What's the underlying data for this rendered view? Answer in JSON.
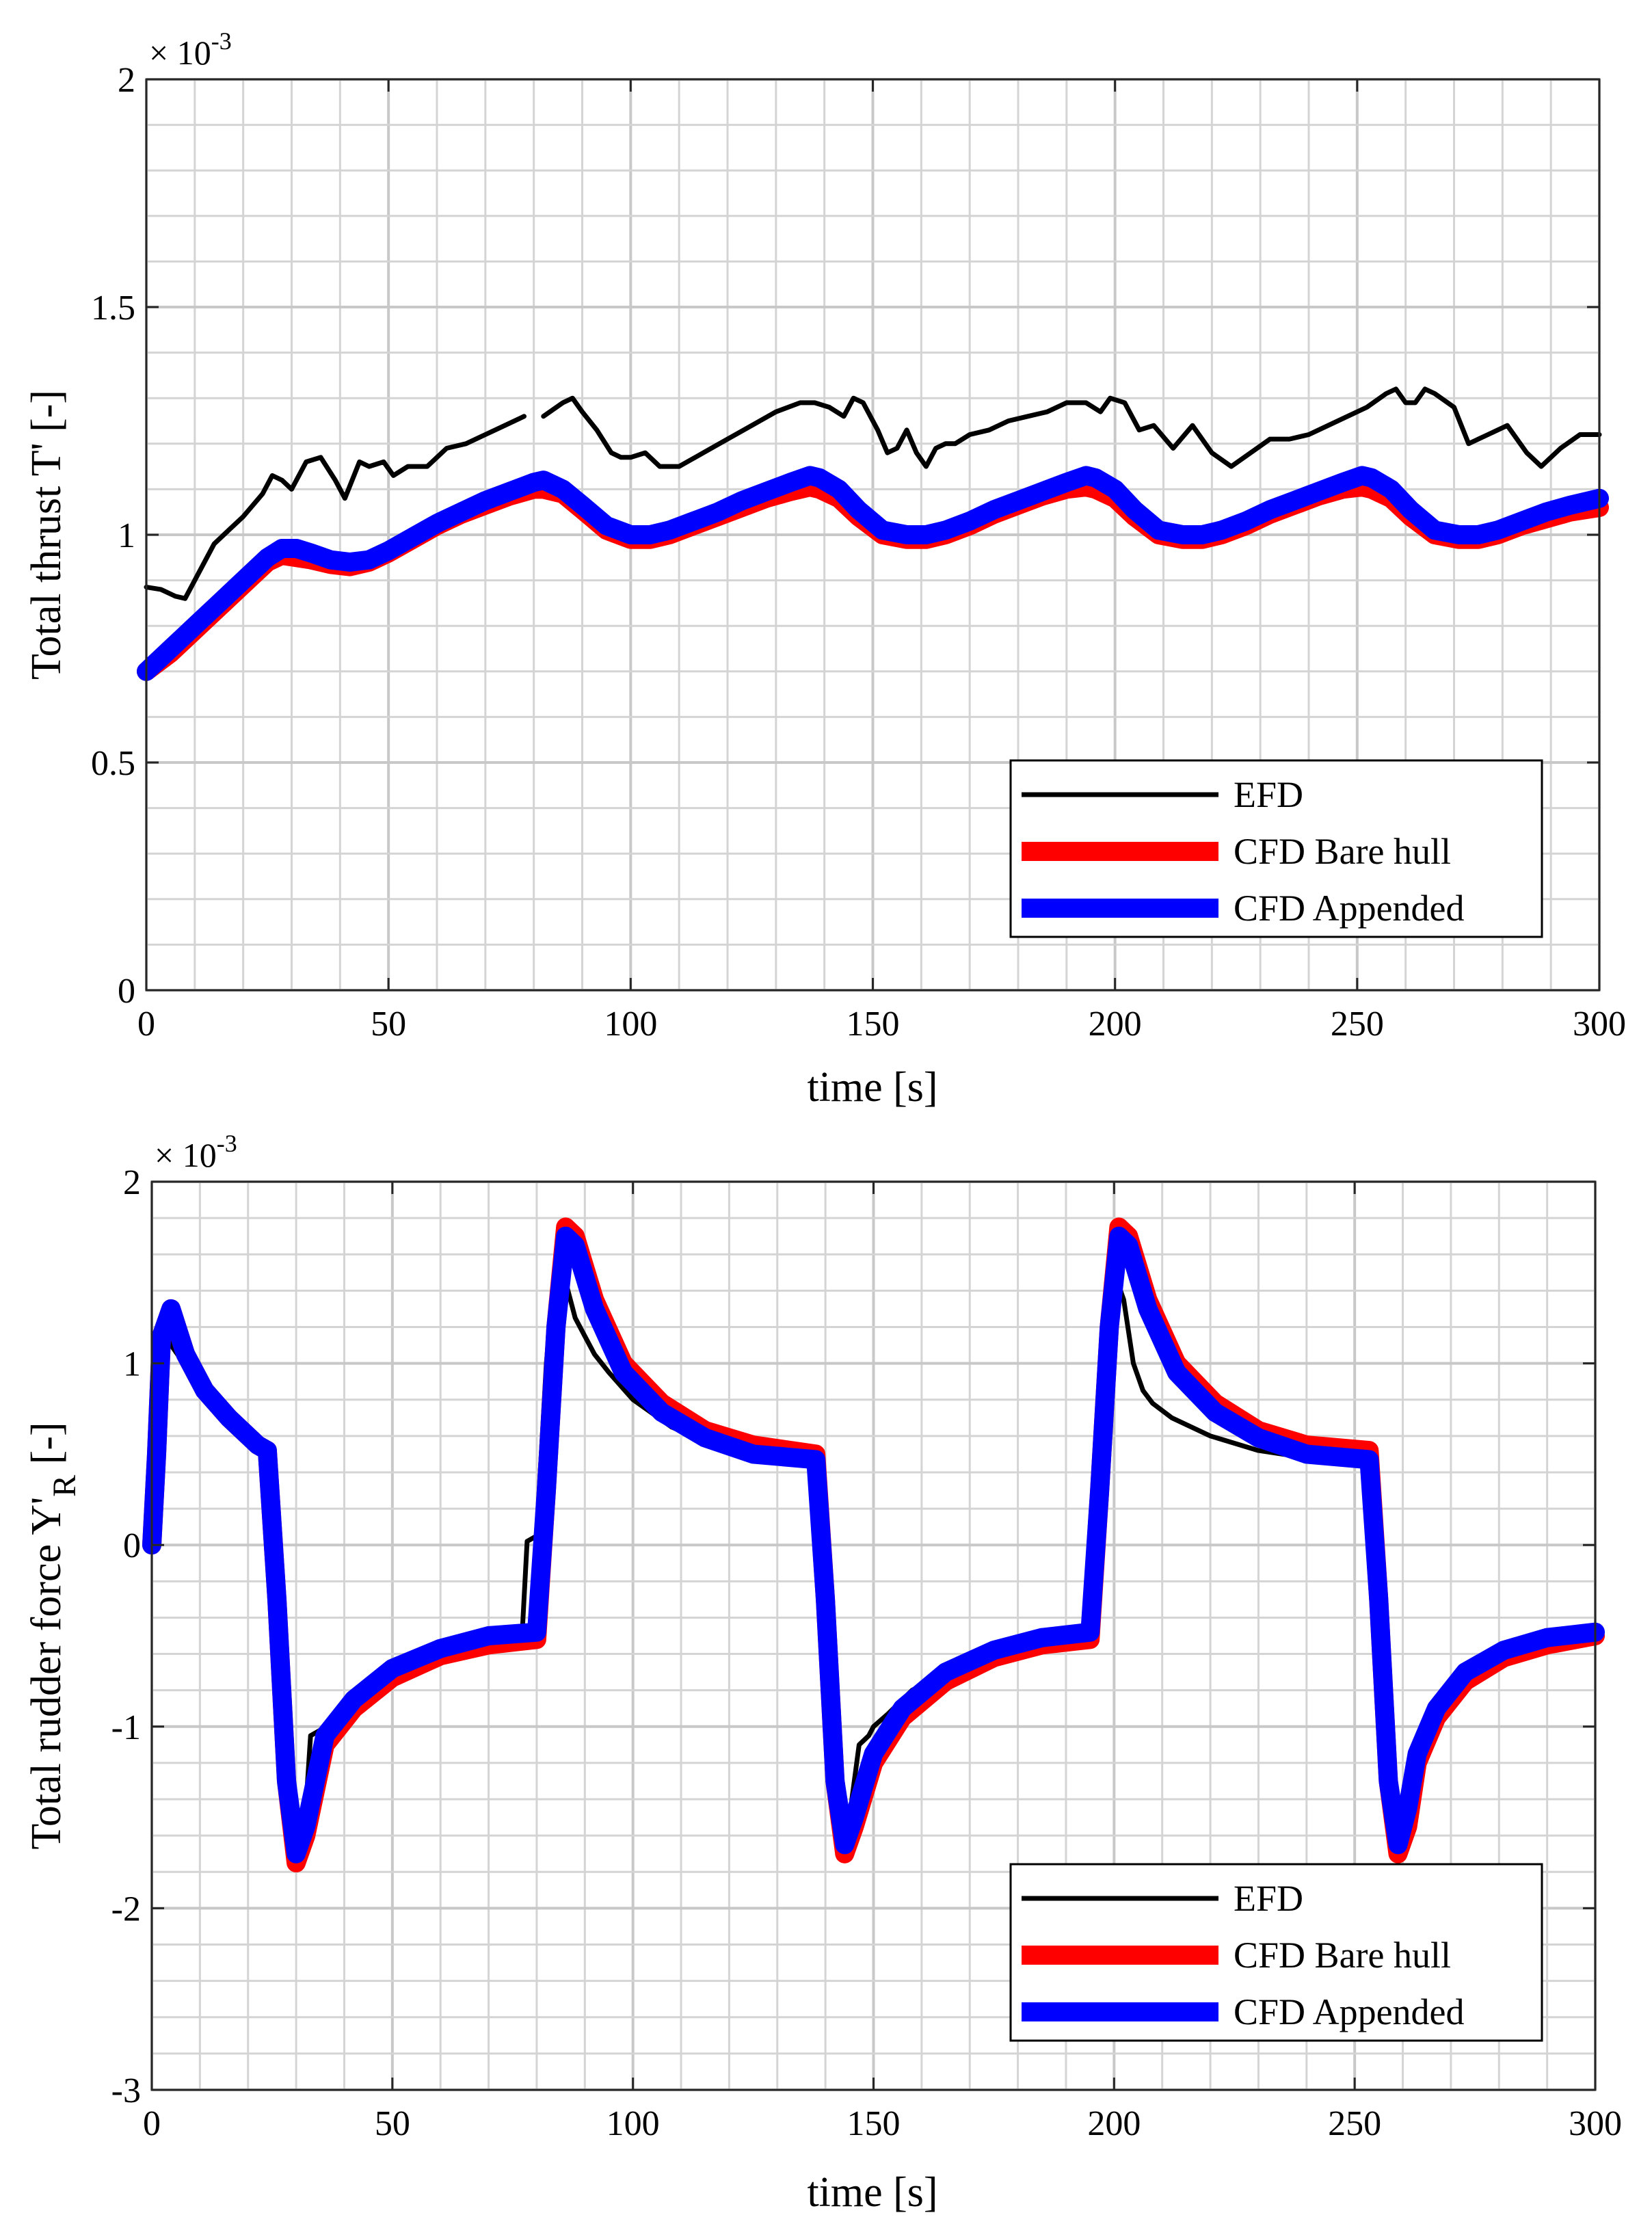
{
  "chart_data": [
    {
      "type": "line",
      "xlabel": "time [s]",
      "ylabel": "Total thrust T' [-]",
      "exponent": {
        "base": "× 10",
        "power": "-3"
      },
      "xlim": [
        0,
        300
      ],
      "ylim": [
        0,
        2
      ],
      "xticks": [
        0,
        50,
        100,
        150,
        200,
        250,
        300
      ],
      "xtick_labels": [
        "0",
        "50",
        "100",
        "150",
        "200",
        "250",
        "300"
      ],
      "yticks": [
        0,
        0.5,
        1,
        1.5,
        2
      ],
      "ytick_labels": [
        "0",
        "0.5",
        "1",
        "1.5",
        "2"
      ],
      "grid": true,
      "legend": {
        "location": "bottom-right"
      },
      "series": [
        {
          "name": "EFD",
          "color": "#000000",
          "x": [
            0,
            3,
            6,
            8,
            11,
            14,
            17,
            20,
            24,
            26,
            28,
            30,
            33,
            36,
            39,
            41,
            44,
            46,
            49,
            51,
            54,
            58,
            62,
            66,
            70,
            74,
            78,
            null,
            82,
            86,
            88,
            90,
            93,
            96,
            98,
            100,
            103,
            106,
            110,
            115,
            120,
            125,
            130,
            135,
            138,
            141,
            144,
            146,
            148,
            151,
            153,
            155,
            157,
            159,
            161,
            163,
            165,
            167,
            170,
            174,
            178,
            182,
            186,
            190,
            194,
            197,
            199,
            202,
            205,
            208,
            212,
            216,
            220,
            224,
            228,
            232,
            236,
            240,
            244,
            248,
            252,
            256,
            258,
            260,
            262,
            264,
            266,
            270,
            273,
            277,
            281,
            285,
            288,
            292,
            296,
            300
          ],
          "values": [
            0.885,
            0.88,
            0.865,
            0.86,
            0.92,
            0.98,
            1.01,
            1.04,
            1.09,
            1.13,
            1.12,
            1.1,
            1.16,
            1.17,
            1.12,
            1.08,
            1.16,
            1.15,
            1.16,
            1.13,
            1.15,
            1.15,
            1.19,
            1.2,
            1.22,
            1.24,
            1.26,
            null,
            1.26,
            1.29,
            1.3,
            1.27,
            1.23,
            1.18,
            1.17,
            1.17,
            1.18,
            1.15,
            1.15,
            1.18,
            1.21,
            1.24,
            1.27,
            1.29,
            1.29,
            1.28,
            1.26,
            1.3,
            1.29,
            1.23,
            1.18,
            1.19,
            1.23,
            1.18,
            1.15,
            1.19,
            1.2,
            1.2,
            1.22,
            1.23,
            1.25,
            1.26,
            1.27,
            1.29,
            1.29,
            1.27,
            1.3,
            1.29,
            1.23,
            1.24,
            1.19,
            1.24,
            1.18,
            1.15,
            1.18,
            1.21,
            1.21,
            1.22,
            1.24,
            1.26,
            1.28,
            1.31,
            1.32,
            1.29,
            1.29,
            1.32,
            1.31,
            1.28,
            1.2,
            1.22,
            1.24,
            1.18,
            1.15,
            1.19,
            1.22,
            1.22
          ]
        },
        {
          "name": "CFD Bare hull",
          "color": "#ff0000",
          "x": [
            0,
            5,
            10,
            15,
            20,
            25,
            28,
            31,
            34,
            38,
            42,
            46,
            50,
            55,
            60,
            65,
            70,
            75,
            80,
            82,
            86,
            90,
            95,
            100,
            104,
            108,
            113,
            118,
            123,
            128,
            133,
            137,
            139,
            143,
            147,
            152,
            157,
            161,
            165,
            170,
            175,
            180,
            185,
            190,
            194,
            196,
            200,
            204,
            209,
            214,
            218,
            222,
            227,
            232,
            237,
            242,
            247,
            251,
            253,
            257,
            261,
            266,
            271,
            275,
            279,
            284,
            289,
            294,
            300
          ],
          "values": [
            0.7,
            0.74,
            0.79,
            0.84,
            0.89,
            0.94,
            0.955,
            0.95,
            0.945,
            0.935,
            0.93,
            0.94,
            0.96,
            0.99,
            1.02,
            1.045,
            1.065,
            1.085,
            1.1,
            1.1,
            1.09,
            1.055,
            1.01,
            0.99,
            0.99,
            1.0,
            1.02,
            1.04,
            1.06,
            1.08,
            1.095,
            1.105,
            1.1,
            1.08,
            1.04,
            1.0,
            0.99,
            0.99,
            1.0,
            1.02,
            1.045,
            1.065,
            1.085,
            1.1,
            1.105,
            1.1,
            1.08,
            1.04,
            1.0,
            0.99,
            0.99,
            1.0,
            1.02,
            1.045,
            1.065,
            1.085,
            1.1,
            1.105,
            1.1,
            1.08,
            1.04,
            1.0,
            0.99,
            0.99,
            1.0,
            1.02,
            1.035,
            1.05,
            1.06
          ]
        },
        {
          "name": "CFD Appended",
          "color": "#0000ff",
          "x": [
            0,
            5,
            10,
            15,
            20,
            25,
            28,
            31,
            34,
            38,
            42,
            46,
            50,
            55,
            60,
            65,
            70,
            75,
            80,
            82,
            86,
            90,
            95,
            100,
            104,
            108,
            113,
            118,
            123,
            128,
            133,
            137,
            139,
            143,
            147,
            152,
            157,
            161,
            165,
            170,
            175,
            180,
            185,
            190,
            194,
            196,
            200,
            204,
            209,
            214,
            218,
            222,
            227,
            232,
            237,
            242,
            247,
            251,
            253,
            257,
            261,
            266,
            271,
            275,
            279,
            284,
            289,
            294,
            300
          ],
          "values": [
            0.7,
            0.75,
            0.8,
            0.85,
            0.9,
            0.95,
            0.97,
            0.97,
            0.96,
            0.945,
            0.94,
            0.945,
            0.965,
            0.995,
            1.025,
            1.05,
            1.075,
            1.095,
            1.115,
            1.12,
            1.1,
            1.065,
            1.02,
            1.0,
            1.0,
            1.01,
            1.03,
            1.05,
            1.075,
            1.095,
            1.115,
            1.13,
            1.125,
            1.1,
            1.055,
            1.01,
            1.0,
            1.0,
            1.01,
            1.03,
            1.055,
            1.075,
            1.095,
            1.115,
            1.13,
            1.125,
            1.1,
            1.055,
            1.01,
            1.0,
            1.0,
            1.01,
            1.03,
            1.055,
            1.075,
            1.095,
            1.115,
            1.13,
            1.125,
            1.1,
            1.055,
            1.01,
            1.0,
            1.0,
            1.01,
            1.03,
            1.05,
            1.065,
            1.08
          ]
        }
      ]
    },
    {
      "type": "line",
      "xlabel": "time [s]",
      "ylabel": "Total rudder force Y'",
      "ylabel_sub": "R",
      "ylabel_unit": "[-]",
      "exponent": {
        "base": "× 10",
        "power": "-3"
      },
      "xlim": [
        0,
        300
      ],
      "ylim": [
        -3,
        2
      ],
      "xticks": [
        0,
        50,
        100,
        150,
        200,
        250,
        300
      ],
      "xtick_labels": [
        "0",
        "50",
        "100",
        "150",
        "200",
        "250",
        "300"
      ],
      "yticks": [
        -3,
        -2,
        -1,
        0,
        1,
        2
      ],
      "ytick_labels": [
        "-3",
        "-2",
        "-1",
        "0",
        "1",
        "2"
      ],
      "grid": true,
      "legend": {
        "location": "bottom-right"
      },
      "series": [
        {
          "name": "EFD",
          "color": "#000000",
          "x": [
            0,
            2,
            4,
            8,
            14,
            20,
            24,
            26,
            28,
            30,
            32,
            33,
            35,
            36,
            38,
            42,
            48,
            55,
            62,
            70,
            77,
            78,
            80,
            82,
            84,
            86,
            88,
            90,
            92,
            95,
            100,
            108,
            115,
            125,
            138,
            139,
            141,
            143,
            145,
            147,
            149,
            150,
            153,
            158,
            165,
            175,
            185,
            195,
            196,
            198,
            200,
            202,
            204,
            206,
            208,
            212,
            220,
            230,
            240,
            253,
            254,
            256,
            258,
            260,
            262,
            264,
            267,
            272,
            280,
            290,
            300
          ],
          "values": [
            0,
            1.2,
            1.1,
            0.95,
            0.75,
            0.6,
            0.55,
            -0.5,
            -1.3,
            -1.6,
            -1.45,
            -1.05,
            -1.02,
            -1.0,
            -0.95,
            -0.85,
            -0.73,
            -0.63,
            -0.57,
            -0.52,
            -0.48,
            0.02,
            0.05,
            1.0,
            1.6,
            1.45,
            1.25,
            1.15,
            1.05,
            0.95,
            0.8,
            0.65,
            0.57,
            0.49,
            0.45,
            -0.5,
            -1.3,
            -1.55,
            -1.5,
            -1.1,
            -1.05,
            -1.0,
            -0.93,
            -0.8,
            -0.7,
            -0.61,
            -0.55,
            -0.48,
            0.05,
            1.0,
            1.5,
            1.35,
            1.0,
            0.85,
            0.78,
            0.7,
            0.6,
            0.52,
            0.48,
            0.45,
            -0.3,
            -0.9,
            -1.3,
            -1.5,
            -1.2,
            -1.05,
            -0.95,
            -0.8,
            -0.65,
            -0.57,
            -0.5
          ]
        },
        {
          "name": "CFD Bare hull",
          "color": "#ff0000",
          "x": [
            0,
            1,
            2,
            4,
            7,
            11,
            16,
            22,
            24,
            26,
            28,
            30,
            32,
            36,
            42,
            50,
            60,
            70,
            80,
            82,
            84,
            86,
            88,
            92,
            98,
            106,
            115,
            125,
            138,
            140,
            142,
            144,
            146,
            150,
            156,
            165,
            175,
            185,
            195,
            197,
            199,
            201,
            203,
            207,
            213,
            221,
            230,
            240,
            253,
            255,
            257,
            259,
            261,
            263,
            267,
            273,
            281,
            290,
            300
          ],
          "values": [
            0,
            0.5,
            1.15,
            1.3,
            1.05,
            0.85,
            0.7,
            0.55,
            0.52,
            -0.3,
            -1.3,
            -1.75,
            -1.6,
            -1.1,
            -0.9,
            -0.73,
            -0.61,
            -0.55,
            -0.52,
            0.3,
            1.2,
            1.75,
            1.7,
            1.35,
            1.0,
            0.78,
            0.63,
            0.55,
            0.5,
            -0.3,
            -1.3,
            -1.7,
            -1.55,
            -1.2,
            -0.95,
            -0.75,
            -0.62,
            -0.55,
            -0.52,
            0.3,
            1.2,
            1.75,
            1.7,
            1.35,
            1.0,
            0.78,
            0.63,
            0.55,
            0.52,
            -0.3,
            -1.3,
            -1.7,
            -1.55,
            -1.2,
            -0.95,
            -0.75,
            -0.62,
            -0.55,
            -0.5
          ]
        },
        {
          "name": "CFD Appended",
          "color": "#0000ff",
          "x": [
            0,
            1,
            2,
            4,
            7,
            11,
            16,
            22,
            24,
            26,
            28,
            30,
            32,
            36,
            42,
            50,
            60,
            70,
            80,
            82,
            84,
            86,
            88,
            92,
            98,
            106,
            115,
            125,
            138,
            140,
            142,
            144,
            146,
            150,
            156,
            165,
            175,
            185,
            195,
            197,
            199,
            201,
            203,
            207,
            213,
            221,
            230,
            240,
            253,
            255,
            257,
            259,
            261,
            263,
            267,
            273,
            281,
            290,
            300
          ],
          "values": [
            0,
            0.5,
            1.15,
            1.3,
            1.05,
            0.85,
            0.7,
            0.55,
            0.52,
            -0.3,
            -1.3,
            -1.7,
            -1.55,
            -1.05,
            -0.85,
            -0.68,
            -0.57,
            -0.5,
            -0.48,
            0.3,
            1.2,
            1.7,
            1.65,
            1.3,
            0.95,
            0.73,
            0.59,
            0.5,
            0.47,
            -0.3,
            -1.3,
            -1.65,
            -1.5,
            -1.15,
            -0.9,
            -0.7,
            -0.58,
            -0.51,
            -0.48,
            0.3,
            1.2,
            1.7,
            1.65,
            1.3,
            0.95,
            0.73,
            0.59,
            0.5,
            0.47,
            -0.3,
            -1.3,
            -1.65,
            -1.45,
            -1.15,
            -0.9,
            -0.7,
            -0.58,
            -0.51,
            -0.48
          ]
        }
      ]
    }
  ]
}
